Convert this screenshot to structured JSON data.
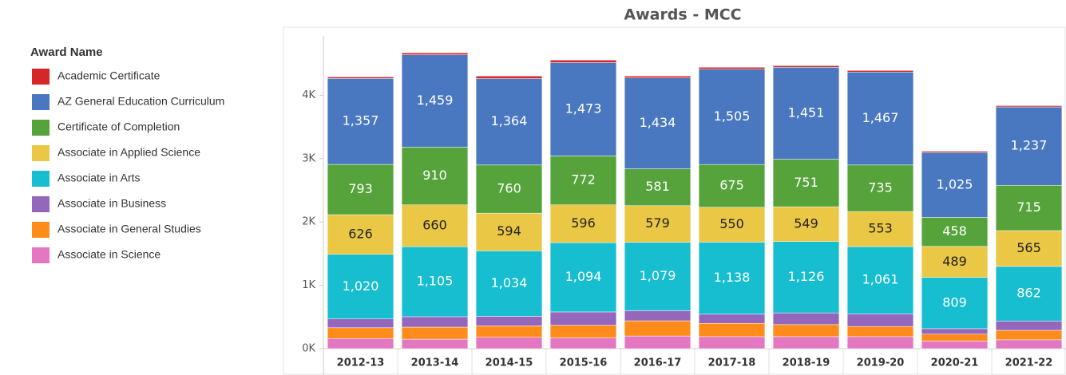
{
  "chart_data": {
    "type": "stacked_bar",
    "title": "Awards - MCC",
    "legend_title": "Award Name",
    "categories": [
      "2012-13",
      "2013-14",
      "2014-15",
      "2015-16",
      "2016-17",
      "2017-18",
      "2018-19",
      "2019-20",
      "2020-21",
      "2021-22"
    ],
    "series": [
      {
        "name": "Academic Certificate",
        "color": "#d62728",
        "values": [
          25,
          30,
          40,
          40,
          30,
          30,
          25,
          25,
          20,
          20
        ]
      },
      {
        "name": "AZ General Education Curriculum",
        "color": "#4a78c0",
        "values": [
          1357,
          1459,
          1364,
          1473,
          1434,
          1505,
          1451,
          1467,
          1025,
          1237
        ],
        "value_labels": [
          "1,357",
          "1,459",
          "1,364",
          "1,473",
          "1,434",
          "1,505",
          "1,451",
          "1,467",
          "1,025",
          "1,237"
        ]
      },
      {
        "name": "Certificate of Completion",
        "color": "#56a33b",
        "values": [
          793,
          910,
          760,
          772,
          581,
          675,
          751,
          735,
          458,
          715
        ],
        "value_labels": [
          "793",
          "910",
          "760",
          "772",
          "581",
          "675",
          "751",
          "735",
          "458",
          "715"
        ]
      },
      {
        "name": "Associate in Applied Science",
        "color": "#eac744",
        "values": [
          626,
          660,
          594,
          596,
          579,
          550,
          549,
          553,
          489,
          565
        ],
        "value_labels": [
          "626",
          "660",
          "594",
          "596",
          "579",
          "550",
          "549",
          "553",
          "489",
          "565"
        ]
      },
      {
        "name": "Associate in Arts",
        "color": "#17becf",
        "values": [
          1020,
          1105,
          1034,
          1094,
          1079,
          1138,
          1126,
          1061,
          809,
          862
        ],
        "value_labels": [
          "1,020",
          "1,105",
          "1,034",
          "1,094",
          "1,079",
          "1,138",
          "1,126",
          "1,061",
          "809",
          "862"
        ]
      },
      {
        "name": "Associate in Business",
        "color": "#9467bd",
        "values": [
          139,
          165,
          151,
          210,
          160,
          144,
          185,
          200,
          86,
          147
        ]
      },
      {
        "name": "Associate in General Studies",
        "color": "#ff8c1a",
        "values": [
          170,
          190,
          180,
          200,
          240,
          210,
          190,
          160,
          110,
          150
        ]
      },
      {
        "name": "Associate in Science",
        "color": "#e377c2",
        "values": [
          160,
          150,
          180,
          170,
          200,
          190,
          190,
          190,
          120,
          140
        ]
      }
    ],
    "ylim": [
      0,
      5000
    ],
    "yticks": [
      {
        "value": 0,
        "label": "0K"
      },
      {
        "value": 1000,
        "label": "1K"
      },
      {
        "value": 2000,
        "label": "2K"
      },
      {
        "value": 3000,
        "label": "3K"
      },
      {
        "value": 4000,
        "label": "4K"
      }
    ],
    "grid": false
  }
}
